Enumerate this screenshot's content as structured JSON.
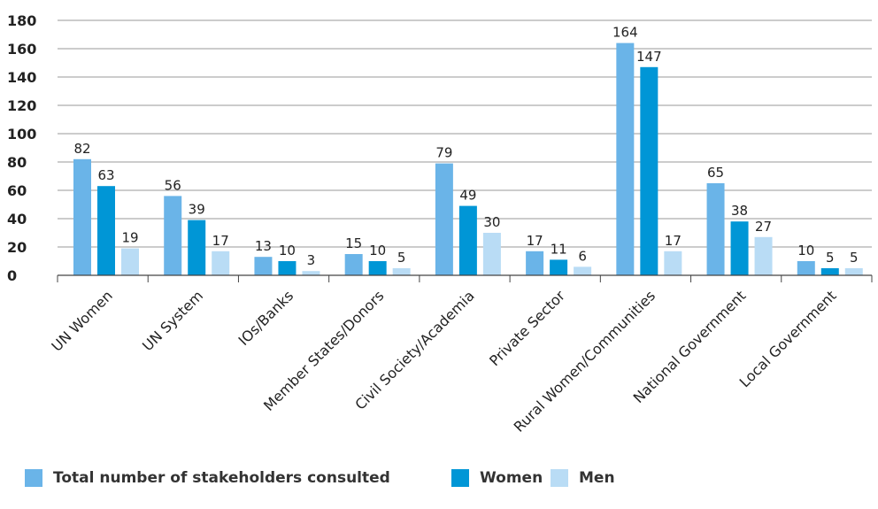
{
  "chart_data": {
    "type": "bar",
    "title": "",
    "xlabel": "",
    "ylabel": "",
    "ylim": [
      0,
      180
    ],
    "yticks": [
      0,
      20,
      40,
      60,
      80,
      100,
      120,
      140,
      160,
      180
    ],
    "grid": true,
    "legend_position": "bottom",
    "categories": [
      "UN Women",
      "UN System",
      "IOs/Banks",
      "Member States/Donors",
      "Civil Society/Academia",
      "Private Sector",
      "Rural Women/Communities",
      "National Government",
      "Local Government"
    ],
    "series": [
      {
        "name": "Total number of stakeholders consulted",
        "color": "#6ab4e8",
        "values": [
          82,
          56,
          13,
          15,
          79,
          17,
          164,
          65,
          10
        ]
      },
      {
        "name": "Women",
        "color": "#0096d6",
        "values": [
          63,
          39,
          10,
          10,
          49,
          11,
          147,
          38,
          5
        ]
      },
      {
        "name": "Men",
        "color": "#b9dcf5",
        "values": [
          19,
          17,
          3,
          5,
          30,
          6,
          17,
          27,
          5
        ]
      }
    ]
  }
}
